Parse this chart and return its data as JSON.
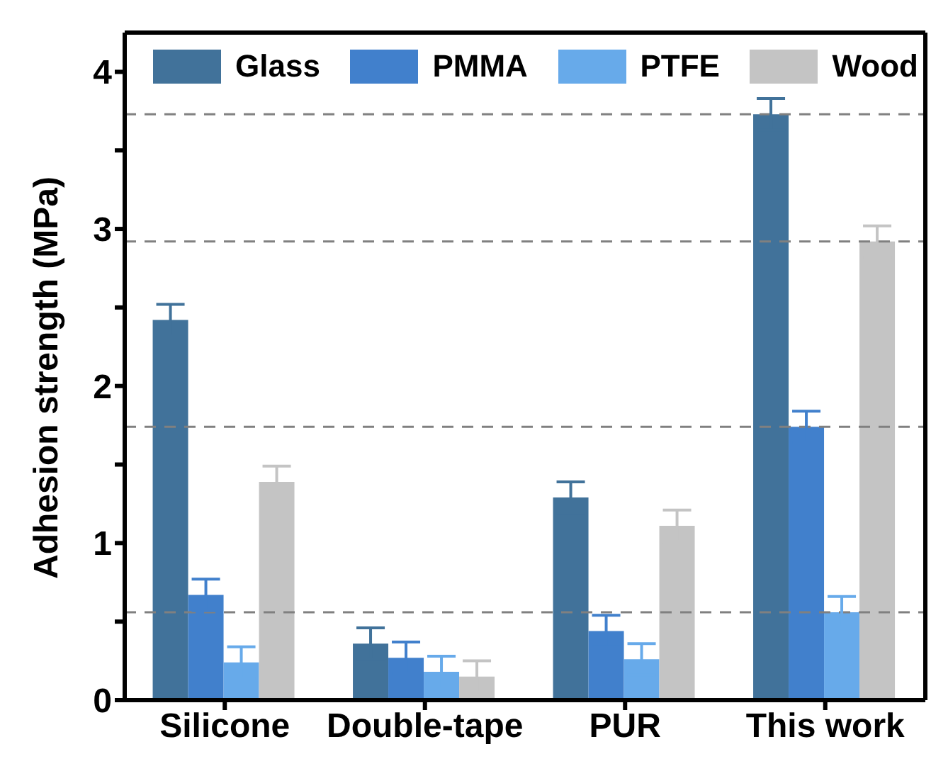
{
  "chart_data": {
    "type": "bar",
    "ylabel": "Adhesion strength (MPa)",
    "categories": [
      "Silicone",
      "Double-tape",
      "PUR",
      "This work"
    ],
    "series": [
      {
        "name": "Glass",
        "color": "#41729a",
        "values": [
          2.42,
          0.36,
          1.29,
          3.73
        ],
        "errors": [
          0.1,
          0.1,
          0.1,
          0.1
        ]
      },
      {
        "name": "PMMA",
        "color": "#4180cc",
        "values": [
          0.67,
          0.27,
          0.44,
          1.74
        ],
        "errors": [
          0.1,
          0.1,
          0.1,
          0.1
        ]
      },
      {
        "name": "PTFE",
        "color": "#67aaea",
        "values": [
          0.24,
          0.18,
          0.26,
          0.56
        ],
        "errors": [
          0.1,
          0.1,
          0.1,
          0.1
        ]
      },
      {
        "name": "Wood",
        "color": "#c4c4c4",
        "values": [
          1.39,
          0.15,
          1.11,
          2.92
        ],
        "errors": [
          0.1,
          0.1,
          0.1,
          0.1
        ]
      }
    ],
    "ylim": [
      0,
      4.25
    ],
    "yticks": [
      0,
      {
        "value": 0.5,
        "label": null
      },
      1,
      {
        "value": 1.5,
        "label": null
      },
      2,
      {
        "value": 2.5,
        "label": null
      },
      3,
      {
        "value": 3.5,
        "label": null
      },
      4
    ],
    "ref_lines": [
      {
        "axis": "y",
        "value": 3.73,
        "color": "#808080",
        "line_style": "dashed"
      },
      {
        "axis": "y",
        "value": 2.92,
        "color": "#808080",
        "line_style": "dashed"
      },
      {
        "axis": "y",
        "value": 1.74,
        "color": "#808080",
        "line_style": "dashed"
      },
      {
        "axis": "y",
        "value": 0.56,
        "color": "#808080",
        "line_style": "dashed"
      }
    ],
    "grid": false,
    "legend": "top"
  }
}
